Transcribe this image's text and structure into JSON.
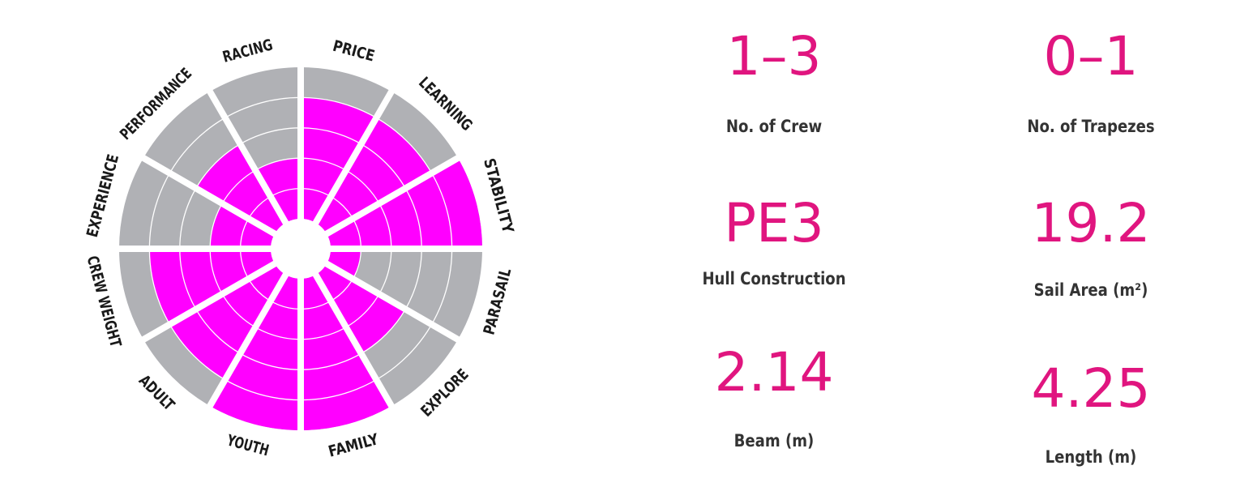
{
  "chart_data": {
    "type": "radial-bar",
    "max": 5,
    "categories": [
      "PRICE",
      "LEARNING",
      "STABILITY",
      "PARASAIL",
      "EXPLORE",
      "FAMILY",
      "YOUTH",
      "ADULT",
      "CREW WEIGHT",
      "EXPERIENCE",
      "PERFORMANCE",
      "RACING"
    ],
    "values": [
      4,
      4,
      5,
      1,
      3,
      5,
      5,
      4,
      4,
      2,
      3,
      2
    ],
    "colors": {
      "filled": "#ff00ff",
      "empty": "#b0b1b5",
      "background": "#ffffff"
    }
  },
  "specs": [
    {
      "value": "1–3",
      "label": "No. of Crew"
    },
    {
      "value": "0–1",
      "label": "No. of Trapezes"
    },
    {
      "value": "PE3",
      "label": "Hull Construction"
    },
    {
      "value": "19.2",
      "label": "Sail Area (m²)"
    },
    {
      "value": "2.14",
      "label": "Beam (m)"
    },
    {
      "value": "4.25",
      "label": "Length (m)"
    }
  ]
}
